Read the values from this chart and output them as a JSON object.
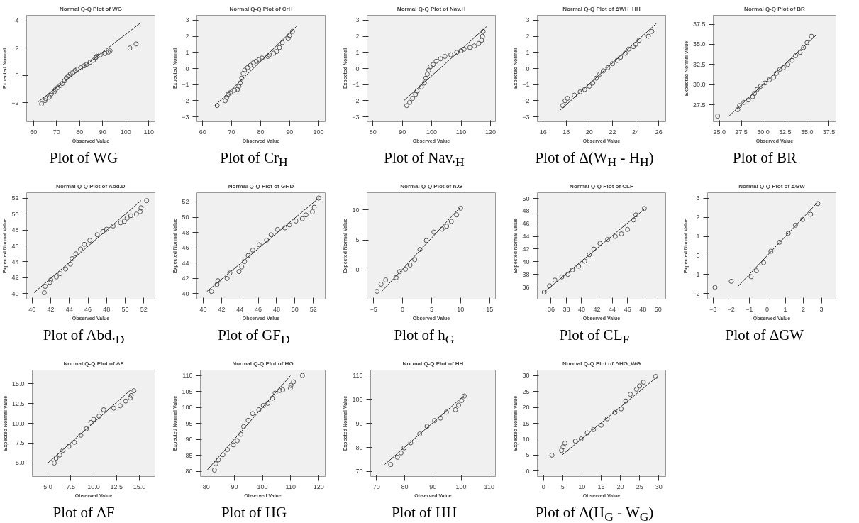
{
  "chart_data": [
    {
      "type": "scatter",
      "title": "Normal Q-Q Plot of WG",
      "xlabel": "Observed Value",
      "ylabel": "Expected Normal",
      "annotations": [
        "Plot of WG"
      ],
      "xlim": [
        57,
        112.7
      ],
      "ylim": [
        -3.4,
        4.4
      ],
      "xticks": [
        60,
        70,
        80,
        90,
        100,
        110
      ],
      "yticks": [
        -2,
        0,
        2,
        4
      ],
      "marker": "circle",
      "series": [
        {
          "color": "#555555",
          "x": [
            63.5,
            65,
            65.3,
            66.8,
            67.2,
            67.8,
            69,
            69.5,
            70.5,
            71.5,
            72.5,
            73.5,
            74.2,
            75,
            76,
            77,
            78,
            79,
            80.5,
            82,
            83,
            84.5,
            86,
            87,
            87.5,
            89,
            91,
            92.5,
            93.2,
            101.8,
            104.5
          ],
          "values": [
            -2.1,
            -1.85,
            -1.7,
            -1.6,
            -1.45,
            -1.35,
            -1.2,
            -1.05,
            -0.9,
            -0.75,
            -0.6,
            -0.4,
            -0.2,
            -0.05,
            0.1,
            0.2,
            0.35,
            0.45,
            0.55,
            0.7,
            0.8,
            0.95,
            1.1,
            1.3,
            1.4,
            1.5,
            1.6,
            1.7,
            1.8,
            2.0,
            2.3
          ]
        },
        {
          "type": "line",
          "marker": "none",
          "color": "#333333",
          "x": [
            62,
            106.5
          ],
          "values": [
            -1.95,
            3.85
          ]
        }
      ]
    },
    {
      "type": "scatter",
      "title": "Normal Q-Q Plot of CrH",
      "xlabel": "Observed Value",
      "ylabel": "Expected Normal",
      "annotations": [
        "Plot of Cr$_{H}$"
      ],
      "xlim": [
        58,
        102.3
      ],
      "ylim": [
        -3.3,
        3.3
      ],
      "xticks": [
        60,
        70,
        80,
        90,
        100
      ],
      "yticks": [
        -3,
        -2,
        -1,
        0,
        1,
        2,
        3
      ],
      "marker": "circle",
      "series": [
        {
          "color": "#555555",
          "x": [
            65,
            67.8,
            68.3,
            68.8,
            69.5,
            71,
            72,
            72.5,
            73,
            73.5,
            74,
            74.5,
            75.5,
            76.5,
            77.5,
            78.5,
            79.5,
            80.5,
            82.5,
            83,
            84.5,
            85.5,
            86.5,
            87.5,
            89.5,
            90,
            91
          ],
          "values": [
            -2.3,
            -2.0,
            -1.8,
            -1.6,
            -1.5,
            -1.35,
            -1.3,
            -1.1,
            -0.9,
            -0.6,
            -0.3,
            -0.1,
            0.05,
            0.2,
            0.35,
            0.45,
            0.55,
            0.65,
            0.75,
            0.85,
            0.95,
            1.05,
            1.3,
            1.6,
            1.85,
            2.05,
            2.3
          ]
        },
        {
          "type": "line",
          "marker": "none",
          "color": "#333333",
          "x": [
            64,
            92.3
          ],
          "values": [
            -2.35,
            2.6
          ]
        }
      ]
    },
    {
      "type": "scatter",
      "title": "Normal Q-Q Plot of Nav.H",
      "xlabel": "Observed Value",
      "ylabel": "Expected Normal",
      "annotations": [
        "Plot of Nav.$_{H}$"
      ],
      "xlim": [
        78,
        121.7
      ],
      "ylim": [
        -3.3,
        3.3
      ],
      "xticks": [
        80,
        90,
        100,
        110,
        120
      ],
      "yticks": [
        -3,
        -2,
        -1,
        0,
        1,
        2,
        3
      ],
      "marker": "circle",
      "series": [
        {
          "color": "#555555",
          "x": [
            91.5,
            92.5,
            93.5,
            94.5,
            95,
            96.5,
            97.5,
            98,
            98.5,
            99,
            99.5,
            100.5,
            101.5,
            103,
            104.5,
            106.5,
            108.5,
            110,
            111,
            113,
            114.5,
            116,
            117,
            117.3,
            117.5
          ],
          "values": [
            -2.3,
            -2.1,
            -1.85,
            -1.6,
            -1.4,
            -1.15,
            -0.9,
            -0.6,
            -0.35,
            -0.1,
            0.1,
            0.25,
            0.45,
            0.6,
            0.75,
            0.85,
            1.0,
            1.1,
            1.2,
            1.3,
            1.4,
            1.55,
            1.75,
            2.0,
            2.3
          ]
        },
        {
          "type": "line",
          "marker": "none",
          "color": "#333333",
          "x": [
            90.5,
            118.7
          ],
          "values": [
            -2.0,
            2.6
          ]
        }
      ]
    },
    {
      "type": "scatter",
      "title": "Normal Q-Q Plot of ΔWH_HH",
      "xlabel": "Observed Value",
      "ylabel": "Expected Normal",
      "annotations": [
        "Plot of Δ(W$_{H}$ - H$_{H}$)"
      ],
      "xlim": [
        15.5,
        26.6
      ],
      "ylim": [
        -3.3,
        3.3
      ],
      "xticks": [
        16,
        18,
        20,
        22,
        24,
        26
      ],
      "yticks": [
        -3,
        -2,
        -1,
        0,
        1,
        2,
        3
      ],
      "marker": "circle",
      "series": [
        {
          "color": "#555555",
          "x": [
            17.7,
            17.9,
            18.1,
            18.7,
            19.2,
            19.6,
            20,
            20.3,
            20.6,
            20.9,
            21.2,
            21.6,
            22,
            22.4,
            22.7,
            23.1,
            23.4,
            23.8,
            24,
            24.3,
            25.1,
            25.4
          ],
          "values": [
            -2.3,
            -2.0,
            -1.85,
            -1.65,
            -1.45,
            -1.3,
            -1.1,
            -0.9,
            -0.6,
            -0.35,
            -0.15,
            0.05,
            0.3,
            0.5,
            0.7,
            0.95,
            1.2,
            1.35,
            1.5,
            1.75,
            2.0,
            2.3
          ]
        },
        {
          "type": "line",
          "marker": "none",
          "color": "#333333",
          "x": [
            17.5,
            25.8
          ],
          "values": [
            -2.57,
            2.8
          ]
        }
      ]
    },
    {
      "type": "scatter",
      "title": "Normal Q-Q Plot of BR",
      "xlabel": "Observed Value",
      "ylabel": "Expected Normal Value",
      "annotations": [
        "Plot of BR"
      ],
      "xlim": [
        24.3,
        38.3
      ],
      "ylim": [
        25.4,
        38.6
      ],
      "xticks": [
        {
          "value": 25,
          "label": "25.0"
        },
        27.5,
        {
          "value": 30,
          "label": "30.0"
        },
        32.5,
        {
          "value": 35,
          "label": "35.0"
        },
        37.5
      ],
      "yticks": [
        27.5,
        {
          "value": 30,
          "label": "30.0"
        },
        32.5,
        {
          "value": 35,
          "label": "35.0"
        },
        37.5
      ],
      "marker": "circle",
      "series": [
        {
          "color": "#555555",
          "x": [
            24.8,
            27.1,
            27.3,
            27.8,
            28.3,
            28.8,
            29,
            29.3,
            29.7,
            30.2,
            30.7,
            31.2,
            31.5,
            31.9,
            32.3,
            32.8,
            33.3,
            33.7,
            34.2,
            34.6,
            35,
            35.5
          ],
          "values": [
            26.1,
            26.9,
            27.4,
            27.8,
            28.1,
            28.5,
            28.9,
            29.4,
            29.8,
            30.2,
            30.6,
            30.9,
            31.4,
            31.9,
            32.1,
            32.5,
            33.0,
            33.6,
            34.0,
            34.6,
            35.2,
            36.0
          ]
        },
        {
          "type": "line",
          "marker": "none",
          "color": "#333333",
          "x": [
            26.1,
            36
          ],
          "values": [
            26.1,
            36.1
          ]
        }
      ]
    },
    {
      "type": "scatter",
      "title": "Normal Q-Q Plot of Abd.D",
      "xlabel": "Observed Value",
      "ylabel": "Expected Normal Value",
      "annotations": [
        "Plot of Abd.$_{D}$"
      ],
      "xlim": [
        39.4,
        53.2
      ],
      "ylim": [
        39.3,
        52.7
      ],
      "xticks": [
        40,
        42,
        44,
        46,
        48,
        50,
        52
      ],
      "yticks": [
        40,
        42,
        44,
        46,
        48,
        50,
        52
      ],
      "marker": "circle",
      "series": [
        {
          "color": "#555555",
          "x": [
            41.3,
            41.4,
            41.9,
            42.0,
            42.6,
            43.0,
            43.6,
            44.1,
            44.3,
            44.7,
            45.2,
            45.6,
            46.2,
            47.0,
            47.6,
            48.0,
            48.7,
            49.5,
            49.9,
            50.2,
            50.6,
            51.2,
            51.6,
            51.7,
            52.3
          ],
          "values": [
            40.1,
            40.9,
            41.4,
            41.7,
            42.1,
            42.5,
            43.1,
            43.7,
            44.4,
            45.0,
            45.6,
            46.2,
            46.7,
            47.4,
            47.8,
            48.1,
            48.5,
            48.9,
            49.1,
            49.5,
            49.8,
            50.0,
            50.3,
            50.8,
            51.7
          ]
        },
        {
          "type": "line",
          "marker": "none",
          "color": "#333333",
          "x": [
            40.2,
            51.7
          ],
          "values": [
            40.1,
            51.7
          ]
        }
      ]
    },
    {
      "type": "scatter",
      "title": "Normal Q-Q Plot of GF.D",
      "xlabel": "Observed Value",
      "ylabel": "Expected Normal Value",
      "annotations": [
        "Plot of GF$_{D}$"
      ],
      "xlim": [
        39.3,
        53.3
      ],
      "ylim": [
        39.3,
        53.2
      ],
      "xticks": [
        40,
        42,
        44,
        46,
        48,
        50,
        52
      ],
      "yticks": [
        40,
        42,
        44,
        46,
        48,
        50,
        52
      ],
      "marker": "circle",
      "series": [
        {
          "color": "#555555",
          "x": [
            40.9,
            41.5,
            41.6,
            42.6,
            42.9,
            43.9,
            44.2,
            44.5,
            44.9,
            45.4,
            46.1,
            46.9,
            47.4,
            48.1,
            48.9,
            49.4,
            50.1,
            50.8,
            51.2,
            51.9,
            52.1,
            52.6
          ],
          "values": [
            40.3,
            41.2,
            41.7,
            42.0,
            42.7,
            42.9,
            43.5,
            44.2,
            45.0,
            45.7,
            46.4,
            47.0,
            47.7,
            48.4,
            48.6,
            49.0,
            49.5,
            49.8,
            50.3,
            50.7,
            51.3,
            52.5
          ]
        },
        {
          "type": "line",
          "marker": "none",
          "color": "#333333",
          "x": [
            40.4,
            52.6
          ],
          "values": [
            40.3,
            52.5
          ]
        }
      ]
    },
    {
      "type": "scatter",
      "title": "Normal Q-Q Plot of h.G",
      "xlabel": "Observed Value",
      "ylabel": "Expected Normal Value",
      "annotations": [
        "Plot of h$_{G}$"
      ],
      "xlim": [
        -6.1,
        16
      ],
      "ylim": [
        -4.9,
        12.9
      ],
      "xticks": [
        -5,
        0,
        5,
        10,
        15
      ],
      "yticks": [
        0,
        5,
        10
      ],
      "marker": "circle",
      "series": [
        {
          "color": "#555555",
          "x": [
            -4.4,
            -3.7,
            -2.9,
            -1.1,
            -0.5,
            0.5,
            1.3,
            2.1,
            3.0,
            4.1,
            5.4,
            6.8,
            7.6,
            8.4,
            9.3,
            10.0
          ],
          "values": [
            -3.6,
            -2.4,
            -1.7,
            -1.3,
            -0.3,
            0.1,
            0.8,
            1.7,
            3.4,
            4.9,
            6.3,
            6.8,
            7.3,
            8.1,
            9.2,
            10.3
          ]
        },
        {
          "type": "line",
          "marker": "none",
          "color": "#333333",
          "x": [
            -3.56,
            9.97
          ],
          "values": [
            -3.6,
            10.5
          ]
        }
      ]
    },
    {
      "type": "scatter",
      "title": "Normal Q-Q Plot of CLF",
      "xlabel": "Observed Value",
      "ylabel": "Expected Normal Value",
      "annotations": [
        "Plot of CL$_{F}$"
      ],
      "xlim": [
        34.2,
        51
      ],
      "ylim": [
        34.1,
        50.9
      ],
      "xticks": [
        36,
        38,
        40,
        42,
        44,
        46,
        48,
        50
      ],
      "yticks": [
        36,
        38,
        40,
        42,
        44,
        46,
        48,
        50
      ],
      "marker": "circle",
      "series": [
        {
          "color": "#555555",
          "x": [
            35.1,
            35.8,
            36.5,
            37.4,
            38.2,
            38.8,
            39.6,
            40.4,
            41.0,
            41.6,
            42.4,
            43.4,
            44.4,
            45.2,
            46.0,
            46.8,
            47.1,
            48.2
          ],
          "values": [
            35.2,
            36.2,
            37.1,
            37.6,
            38.0,
            38.7,
            39.3,
            40.1,
            41.1,
            42.0,
            42.9,
            43.5,
            44.0,
            44.4,
            45.1,
            46.6,
            47.4,
            48.4
          ]
        },
        {
          "type": "line",
          "marker": "none",
          "color": "#333333",
          "x": [
            35.1,
            48.2
          ],
          "values": [
            35.2,
            48.3
          ]
        }
      ]
    },
    {
      "type": "scatter",
      "title": "Normal Q-Q Plot of ΔGW",
      "xlabel": "Observed Value",
      "ylabel": "Expected Normal Value",
      "annotations": [
        "Plot of ΔGW"
      ],
      "xlim": [
        -3.3,
        3.8
      ],
      "ylim": [
        -2.28,
        3.28
      ],
      "xticks": [
        -3,
        -2,
        -1,
        0,
        1,
        2,
        3
      ],
      "yticks": [
        -2,
        -1,
        0,
        1,
        2,
        3
      ],
      "marker": "circle",
      "series": [
        {
          "color": "#555555",
          "x": [
            -2.89,
            -1.99,
            -0.89,
            -0.6,
            -0.2,
            0.2,
            0.68,
            1.16,
            1.56,
            1.96,
            2.4,
            2.8
          ],
          "values": [
            -1.67,
            -1.35,
            -1.11,
            -0.8,
            -0.38,
            0.22,
            0.69,
            1.15,
            1.58,
            1.88,
            2.15,
            2.71
          ]
        },
        {
          "type": "line",
          "marker": "none",
          "color": "#333333",
          "x": [
            -1.64,
            2.76
          ],
          "values": [
            -1.64,
            2.75
          ]
        }
      ]
    },
    {
      "type": "scatter",
      "title": "Normal Q-Q Plot of ΔF",
      "xlabel": "Observed Value",
      "ylabel": "Expected Normal Value",
      "annotations": [
        "Plot of ΔF"
      ],
      "xlim": [
        3.3,
        16.7
      ],
      "ylim": [
        3.3,
        16.7
      ],
      "xticks": [
        {
          "value": 5,
          "label": "5.0"
        },
        7.5,
        {
          "value": 10,
          "label": "10.0"
        },
        12.5,
        {
          "value": 15,
          "label": "15.0"
        }
      ],
      "yticks": [
        {
          "value": 5,
          "label": "5.0"
        },
        7.5,
        {
          "value": 10,
          "label": "10.0"
        },
        12.5,
        {
          "value": 15,
          "label": "15.0"
        }
      ],
      "marker": "circle",
      "series": [
        {
          "color": "#555555",
          "x": [
            5.7,
            5.9,
            6.3,
            6.65,
            7.3,
            7.9,
            8.6,
            9.2,
            9.7,
            10.0,
            10.6,
            11.1,
            12.2,
            12.9,
            13.5,
            14.0,
            14.1,
            14.4
          ],
          "values": [
            5.0,
            5.6,
            6.0,
            6.6,
            7.1,
            7.6,
            8.5,
            9.3,
            10.1,
            10.5,
            10.9,
            11.7,
            11.9,
            12.2,
            12.8,
            13.2,
            13.5,
            14.1
          ]
        },
        {
          "type": "line",
          "marker": "none",
          "color": "#333333",
          "x": [
            5,
            14.05
          ],
          "values": [
            5,
            14.2
          ]
        }
      ]
    },
    {
      "type": "scatter",
      "title": "Normal Q-Q Plot of HG",
      "xlabel": "Observed Value",
      "ylabel": "Expected Normal Value",
      "annotations": [
        "Plot of HG"
      ],
      "xlim": [
        77.9,
        122.3
      ],
      "ylim": [
        78.4,
        111.7
      ],
      "xticks": [
        80,
        90,
        100,
        110,
        120
      ],
      "yticks": [
        80,
        85,
        90,
        95,
        100,
        105,
        110
      ],
      "marker": "circle",
      "series": [
        {
          "color": "#555555",
          "x": [
            82.9,
            83.4,
            84.3,
            85.9,
            87.5,
            89.6,
            91.0,
            92.3,
            93.3,
            94.9,
            96.5,
            98.7,
            100.3,
            101.9,
            103.5,
            104.5,
            106.1,
            107.2,
            109.9,
            110.1,
            111.0,
            114.2
          ],
          "values": [
            80.4,
            82.4,
            83.6,
            85.2,
            86.8,
            88.3,
            89.6,
            91.6,
            94.0,
            96.0,
            98.1,
            99.3,
            100.6,
            101.3,
            102.9,
            104.5,
            105.3,
            105.5,
            106.1,
            106.9,
            108.0,
            110.0
          ]
        },
        {
          "type": "line",
          "marker": "none",
          "color": "#333333",
          "x": [
            80.3,
            109.9
          ],
          "values": [
            80.4,
            109.9
          ]
        }
      ]
    },
    {
      "type": "scatter",
      "title": "Normal Q-Q Plot of HH",
      "xlabel": "Observed Value",
      "ylabel": "Expected Normal Value",
      "annotations": [
        "Plot of HH"
      ],
      "xlim": [
        67.9,
        112.2
      ],
      "ylim": [
        67.9,
        112.2
      ],
      "xticks": [
        70,
        80,
        90,
        100,
        110
      ],
      "yticks": [
        70,
        80,
        90,
        100,
        110
      ],
      "marker": "circle",
      "series": [
        {
          "color": "#555555",
          "x": [
            75.0,
            77.4,
            78.7,
            79.8,
            82.1,
            85.3,
            87.9,
            90.6,
            92.7,
            94.8,
            98.0,
            99.1,
            100.2,
            101.1
          ],
          "values": [
            72.9,
            75.9,
            77.7,
            79.8,
            81.9,
            85.6,
            88.8,
            91.2,
            92.2,
            94.7,
            95.7,
            97.6,
            99.5,
            101.4
          ]
        },
        {
          "type": "line",
          "marker": "none",
          "color": "#333333",
          "x": [
            72.9,
            101.1
          ],
          "values": [
            72.9,
            101.6
          ]
        }
      ]
    },
    {
      "type": "scatter",
      "title": "Normal Q-Q Plot of ΔHG_WG",
      "xlabel": "Observed Value",
      "ylabel": "Expected Normal Value",
      "annotations": [
        "Plot of Δ(H$_{G}$ - W$_{G}$)"
      ],
      "xlim": [
        -1.6,
        31.8
      ],
      "ylim": [
        -1.7,
        31.7
      ],
      "xticks": [
        0,
        5,
        10,
        15,
        20,
        25,
        30
      ],
      "yticks": [
        0,
        5,
        10,
        15,
        20,
        25,
        30
      ],
      "marker": "circle",
      "series": [
        {
          "color": "#555555",
          "x": [
            2.2,
            4.7,
            5.1,
            5.6,
            8.3,
            9.8,
            11.4,
            13.0,
            15.0,
            16.6,
            18.6,
            20.2,
            21.4,
            22.6,
            24.2,
            25.0,
            26.0,
            29.2
          ],
          "values": [
            5.0,
            6.5,
            7.6,
            8.8,
            9.4,
            10.1,
            12.0,
            13.0,
            14.4,
            16.4,
            18.4,
            19.5,
            22.0,
            24.1,
            25.7,
            26.7,
            27.9,
            29.7
          ]
        },
        {
          "type": "line",
          "marker": "none",
          "color": "#333333",
          "x": [
            4.8,
            29.7
          ],
          "values": [
            5.0,
            29.7
          ]
        }
      ]
    }
  ]
}
